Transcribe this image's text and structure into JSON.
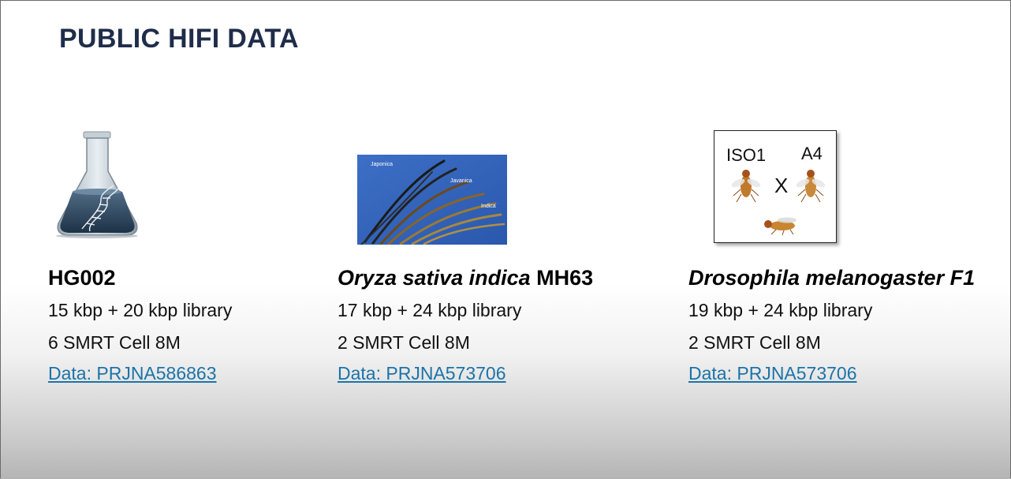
{
  "slide": {
    "title": "PUBLIC HIFI DATA"
  },
  "samples": [
    {
      "heading_italic": "",
      "heading_plain": "HG002",
      "library": "15 kbp + 20 kbp library",
      "cells": "6 SMRT Cell 8M",
      "link": "Data: PRJNA586863",
      "image": "flask-dna-icon"
    },
    {
      "heading_italic": "Oryza sativa indica",
      "heading_plain": " MH63",
      "library": "17 kbp + 24 kbp library",
      "cells": "2 SMRT Cell 8M",
      "link": "Data: PRJNA573706",
      "image": "rice-panicles-photo",
      "image_labels": [
        "Japonica",
        "Javanica",
        "Indica"
      ]
    },
    {
      "heading_italic": "Drosophila melanogaster F1",
      "heading_plain": "",
      "library": "19 kbp + 24 kbp library",
      "cells": "2 SMRT Cell 8M",
      "link": "Data: PRJNA573706",
      "image": "fruit-fly-cross-diagram",
      "image_labels": [
        "ISO1",
        "A4",
        "X"
      ]
    }
  ],
  "colors": {
    "title": "#1f2d4a",
    "link": "#1c73a8"
  }
}
